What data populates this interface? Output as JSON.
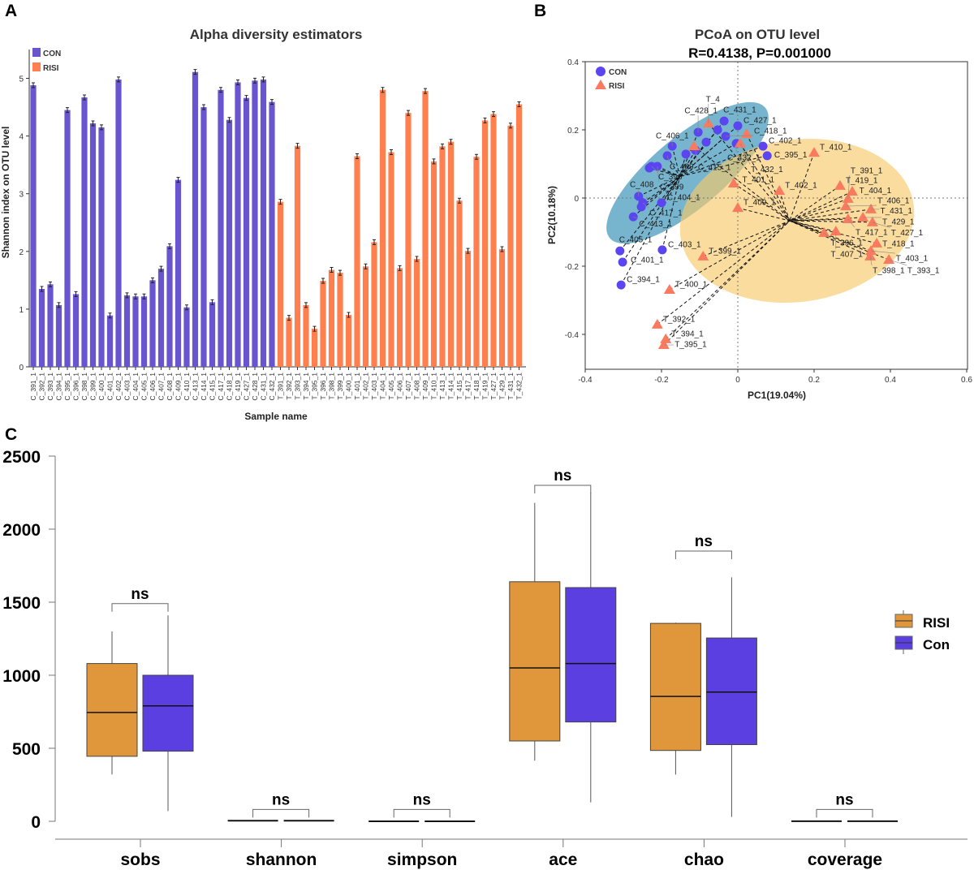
{
  "panel_labels": {
    "a": "A",
    "b": "B",
    "c": "C"
  },
  "colors": {
    "con_bar": "#6A55D0",
    "risi_bar": "#FF7F4F",
    "con_point": "#5A45F0",
    "risi_point": "#F97A5F",
    "con_ellipse": "#4A9BBE",
    "risi_ellipse": "#F8C96A",
    "box_risi": "#E0963A",
    "box_con": "#5B3FE0"
  },
  "chart_data": [
    {
      "type": "bar",
      "title": "Alpha diversity estimators",
      "xlabel": "Sample name",
      "ylabel": "Shannon index on OTU level",
      "ylim": [
        0,
        5.5
      ],
      "yticks": [
        "0",
        "1",
        "2",
        "3",
        "4",
        "5"
      ],
      "legend": [
        {
          "name": "CON"
        },
        {
          "name": "RISI"
        }
      ],
      "legend_position": "top-left",
      "error_bars": true,
      "series": [
        {
          "name": "CON",
          "categories": [
            "C_391_1",
            "C_392_1",
            "C_393_1",
            "C_394_1",
            "C_395_1",
            "C_396_1",
            "C_398_1",
            "C_399_1",
            "C_400_1",
            "C_401_1",
            "C_402_1",
            "C_403_1",
            "C_404_1",
            "C_405_1",
            "C_406_1",
            "C_407_1",
            "C_408_1",
            "C_409_1",
            "C_410_1",
            "C_413_1",
            "C_414_1",
            "C_415_1",
            "C_417_1",
            "C_418_1",
            "C_419_1",
            "C_427_1",
            "C_428_1",
            "C_431_1",
            "C_432_1"
          ],
          "values": [
            4.88,
            1.35,
            1.43,
            1.07,
            4.45,
            1.26,
            4.67,
            4.22,
            4.15,
            0.89,
            4.98,
            1.24,
            1.22,
            1.22,
            1.5,
            1.7,
            2.09,
            3.24,
            1.03,
            5.11,
            4.5,
            1.12,
            4.8,
            4.28,
            4.93,
            4.66,
            4.96,
            4.98,
            4.59
          ]
        },
        {
          "name": "RISI",
          "categories": [
            "T_391_1",
            "T_392_1",
            "T_393_1",
            "T_394_1",
            "T_395_1",
            "T_396_1",
            "T_398_1",
            "T_399_1",
            "T_400_1",
            "T_401_1",
            "T_402_1",
            "T_403_1",
            "T_404_1",
            "T_405_1",
            "T_406_1",
            "T_407_1",
            "T_408_1",
            "T_409_1",
            "T_410_1",
            "T_413_1",
            "T_414_1",
            "T_415_1",
            "T_417_1",
            "T_418_1",
            "T_419_1",
            "T_427_1",
            "T_429_1",
            "T_431_1",
            "T_432_1"
          ],
          "values": [
            2.86,
            0.85,
            3.83,
            1.07,
            0.66,
            1.49,
            1.68,
            1.63,
            0.9,
            3.65,
            1.74,
            2.16,
            4.8,
            3.72,
            1.71,
            4.4,
            1.87,
            4.78,
            3.56,
            3.82,
            3.9,
            2.88,
            2.01,
            3.64,
            4.27,
            4.38,
            2.04,
            4.18,
            4.55
          ]
        }
      ]
    },
    {
      "type": "scatter",
      "title": "PCoA on OTU level",
      "subtitle": "R=0.4138, P=0.001000",
      "xlabel": "PC1(19.04%)",
      "ylabel": "PC2(10.18%)",
      "xlim": [
        -0.4,
        0.6
      ],
      "ylim": [
        -0.5,
        0.4
      ],
      "xticks": [
        "-0.4",
        "-0.2",
        "0",
        "0.2",
        "0.4",
        "0.6"
      ],
      "yticks": [
        "0.4",
        "0.2",
        "0",
        "-0.2",
        "-0.4"
      ],
      "legend_position": "top-left",
      "confidence_ellipses": true,
      "series": [
        {
          "name": "CON",
          "marker": "circle",
          "points": [
            {
              "x": -0.036,
              "y": 0.226,
              "label": "C_431_1"
            },
            {
              "x": 0.0,
              "y": 0.212,
              "label": "C_427_1"
            },
            {
              "x": -0.104,
              "y": 0.193,
              "label": "C_428_1"
            },
            {
              "x": -0.032,
              "y": 0.181,
              "label": "C_418_1"
            },
            {
              "x": -0.004,
              "y": 0.16,
              "label": "C_432_1"
            },
            {
              "x": -0.172,
              "y": 0.152,
              "label": "C_406_1"
            },
            {
              "x": -0.111,
              "y": 0.14,
              "label": "C_415_1"
            },
            {
              "x": -0.185,
              "y": 0.124,
              "label": "C_409"
            },
            {
              "x": -0.226,
              "y": 0.093,
              "label": "C_396"
            },
            {
              "x": -0.211,
              "y": 0.093,
              "label": "C_399"
            },
            {
              "x": 0.066,
              "y": 0.152,
              "label": "C_402_1"
            },
            {
              "x": 0.077,
              "y": 0.124,
              "label": "C_395_1"
            },
            {
              "x": -0.26,
              "y": 0.005,
              "label": "C_408"
            },
            {
              "x": -0.249,
              "y": -0.014,
              "label": "C_417_1"
            },
            {
              "x": -0.274,
              "y": -0.055,
              "label": "C_413_1"
            },
            {
              "x": -0.2,
              "y": -0.014,
              "label": "C_404_1"
            },
            {
              "x": -0.309,
              "y": -0.155,
              "label": "C_405_1"
            },
            {
              "x": -0.302,
              "y": -0.188,
              "label": "C_401_1"
            },
            {
              "x": -0.306,
              "y": -0.255,
              "label": "C_394_1"
            },
            {
              "x": -0.198,
              "y": -0.152,
              "label": "C_403_1"
            },
            {
              "x": -0.232,
              "y": 0.088,
              "label": ""
            },
            {
              "x": -0.253,
              "y": -0.026,
              "label": ""
            },
            {
              "x": -0.083,
              "y": 0.164,
              "label": ""
            },
            {
              "x": -0.053,
              "y": 0.2,
              "label": ""
            },
            {
              "x": -0.136,
              "y": 0.129,
              "label": ""
            }
          ]
        },
        {
          "name": "RISI",
          "marker": "triangle",
          "points": [
            {
              "x": -0.077,
              "y": 0.219,
              "label": "T_4"
            },
            {
              "x": -0.115,
              "y": 0.152,
              "label": ""
            },
            {
              "x": 0.023,
              "y": 0.188,
              "label": ""
            },
            {
              "x": 0.006,
              "y": 0.16,
              "label": "T_432_1"
            },
            {
              "x": 0.2,
              "y": 0.133,
              "label": "T_410_1"
            },
            {
              "x": -0.011,
              "y": 0.043,
              "label": "T_401_1"
            },
            {
              "x": 0.109,
              "y": 0.021,
              "label": "T_402_1"
            },
            {
              "x": 0.0,
              "y": -0.029,
              "label": "T_409_1"
            },
            {
              "x": 0.268,
              "y": 0.036,
              "label": "T_419_1"
            },
            {
              "x": 0.3,
              "y": 0.019,
              "label": "T_404_1"
            },
            {
              "x": 0.289,
              "y": -0.002,
              "label": "T_391_1"
            },
            {
              "x": 0.283,
              "y": -0.024,
              "label": "T_406_1"
            },
            {
              "x": 0.349,
              "y": -0.033,
              "label": "T_431_1"
            },
            {
              "x": 0.289,
              "y": -0.062,
              "label": "T_417_1"
            },
            {
              "x": 0.328,
              "y": -0.057,
              "label": "T_429_1"
            },
            {
              "x": 0.353,
              "y": -0.071,
              "label": "T_427_1"
            },
            {
              "x": 0.226,
              "y": -0.102,
              "label": "T_396_1"
            },
            {
              "x": 0.257,
              "y": -0.098,
              "label": "T_407_1"
            },
            {
              "x": 0.364,
              "y": -0.133,
              "label": "T_418_1"
            },
            {
              "x": 0.349,
              "y": -0.155,
              "label": "T_403_1"
            },
            {
              "x": 0.347,
              "y": -0.171,
              "label": "T_398_1"
            },
            {
              "x": 0.396,
              "y": -0.181,
              "label": "T_393_1"
            },
            {
              "x": -0.091,
              "y": -0.171,
              "label": "T_399_1"
            },
            {
              "x": -0.179,
              "y": -0.269,
              "label": "T_400_1"
            },
            {
              "x": -0.211,
              "y": -0.371,
              "label": "T_392_1"
            },
            {
              "x": -0.189,
              "y": -0.414,
              "label": "T_394_1"
            },
            {
              "x": -0.194,
              "y": -0.431,
              "label": "T_395_1"
            }
          ]
        }
      ]
    },
    {
      "type": "box",
      "categories": [
        "sobs",
        "shannon",
        "simpson",
        "ace",
        "chao",
        "coverage"
      ],
      "ylim": [
        0,
        2500
      ],
      "yticks": [
        "0",
        "500",
        "1000",
        "1500",
        "2000",
        "2500"
      ],
      "legend": [
        {
          "name": "RISI"
        },
        {
          "name": "Con"
        }
      ],
      "legend_position": "right",
      "significance": [
        "ns",
        "ns",
        "ns",
        "ns",
        "ns",
        "ns"
      ],
      "bracket_levels": [
        1490,
        70,
        70,
        2300,
        1850,
        70
      ],
      "series": [
        {
          "name": "RISI",
          "boxes": [
            {
              "min": 320,
              "q1": 445,
              "median": 745,
              "q3": 1080,
              "max": 1300
            },
            {
              "min": 4,
              "q1": 4,
              "median": 4,
              "q3": 4,
              "max": 4
            },
            {
              "min": 0.2,
              "q1": 0.2,
              "median": 0.2,
              "q3": 0.2,
              "max": 0.2
            },
            {
              "min": 415,
              "q1": 550,
              "median": 1050,
              "q3": 1640,
              "max": 2180
            },
            {
              "min": 320,
              "q1": 485,
              "median": 855,
              "q3": 1355,
              "max": 1360
            },
            {
              "min": 1,
              "q1": 1,
              "median": 1,
              "q3": 1,
              "max": 1
            }
          ]
        },
        {
          "name": "Con",
          "boxes": [
            {
              "min": 70,
              "q1": 480,
              "median": 790,
              "q3": 1000,
              "max": 1410
            },
            {
              "min": 4,
              "q1": 4,
              "median": 4,
              "q3": 4,
              "max": 4
            },
            {
              "min": 0.2,
              "q1": 0.2,
              "median": 0.2,
              "q3": 0.2,
              "max": 0.2
            },
            {
              "min": 130,
              "q1": 680,
              "median": 1080,
              "q3": 1600,
              "max": 2250
            },
            {
              "min": 30,
              "q1": 525,
              "median": 885,
              "q3": 1255,
              "max": 1670
            },
            {
              "min": 1,
              "q1": 1,
              "median": 1,
              "q3": 1,
              "max": 1
            }
          ]
        }
      ]
    }
  ]
}
